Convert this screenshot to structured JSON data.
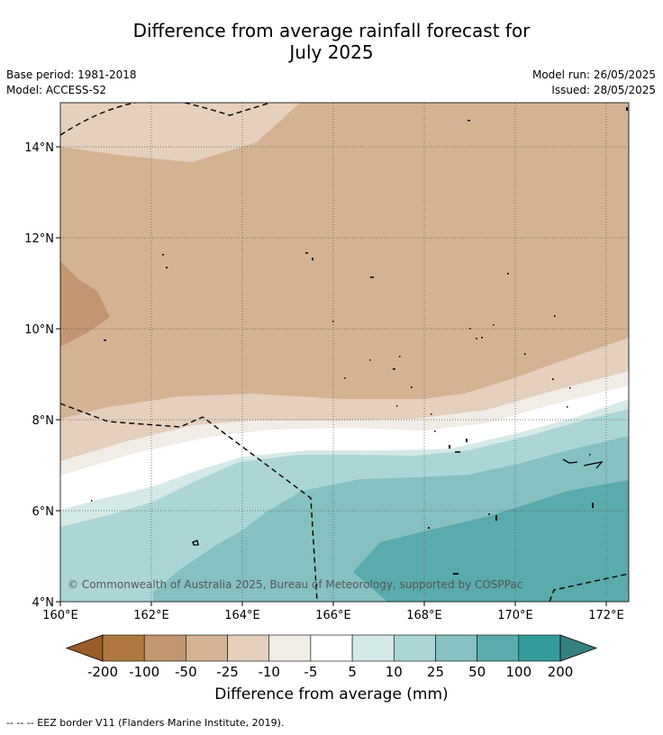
{
  "title_line1": "Difference from average rainfall forecast for",
  "title_line2": "July 2025",
  "base_period": "Base period: 1981-2018",
  "model": "Model: ACCESS-S2",
  "model_run": "Model run: 26/05/2025",
  "issued": "Issued: 28/05/2025",
  "copyright": "© Commonwealth of Australia 2025, Bureau of Meteorology, supported by COSPPac",
  "x_ticks": [
    "160°E",
    "162°E",
    "164°E",
    "166°E",
    "168°E",
    "170°E",
    "172°E"
  ],
  "y_ticks": [
    "14°N",
    "12°N",
    "10°N",
    "8°N",
    "6°N",
    "4°N"
  ],
  "colorbar": {
    "title": "Difference from average (mm)",
    "labels": [
      "-200",
      "-100",
      "-50",
      "-25",
      "-10",
      "-5",
      "5",
      "10",
      "25",
      "50",
      "100",
      "200"
    ],
    "colors": [
      "#995c2a",
      "#b07840",
      "#c29670",
      "#d4b392",
      "#e4d0bd",
      "#f2ece6",
      "#ffffff",
      "#d5e9e8",
      "#acd6d6",
      "#87c0c0",
      "#5aabab",
      "#349b9b",
      "#338080"
    ]
  },
  "footnote": "--  --  -- EEZ border V11 (Flanders Marine Institute, 2019)."
}
